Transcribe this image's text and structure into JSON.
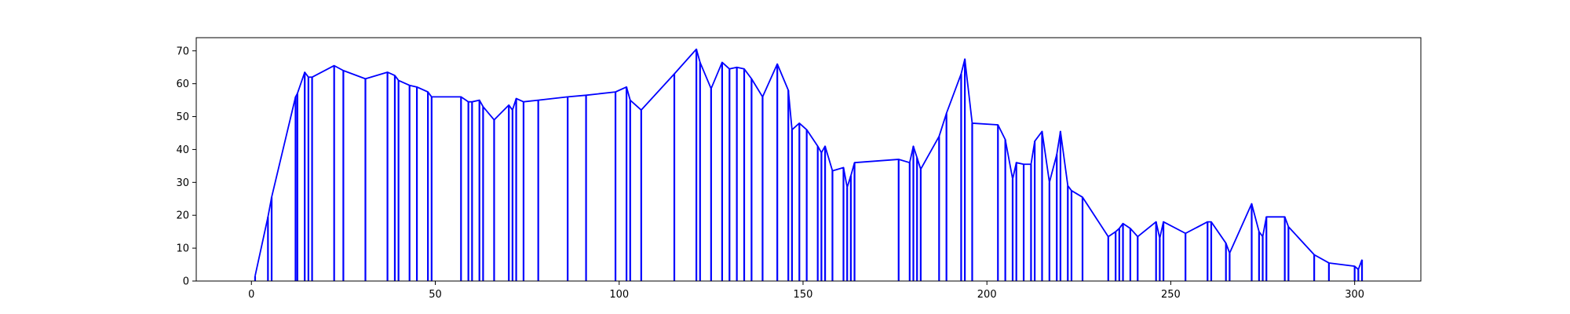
{
  "chart_data": {
    "type": "line",
    "title": "",
    "xlabel": "",
    "ylabel": "",
    "xlim": [
      -15,
      318
    ],
    "ylim": [
      0,
      74
    ],
    "xticks": [
      0,
      50,
      100,
      150,
      200,
      250,
      300
    ],
    "yticks": [
      0,
      10,
      20,
      30,
      40,
      50,
      60,
      70
    ],
    "xtick_labels": [
      "0",
      "50",
      "100",
      "150",
      "200",
      "250",
      "300"
    ],
    "ytick_labels": [
      "0",
      "10",
      "20",
      "30",
      "40",
      "50",
      "60",
      "70"
    ],
    "grid": false,
    "legend": false,
    "style": "line with vertical drop lines to zero at each point",
    "colors": {
      "series": "#0000ff",
      "axes": "#000000",
      "background": "#ffffff"
    },
    "series": [
      {
        "x": [
          1,
          4.5,
          5.5,
          12,
          12.5,
          14.5,
          15.5,
          16.5,
          22.5,
          25,
          31,
          37,
          39,
          40,
          43,
          45,
          48,
          49,
          57,
          59,
          60,
          62,
          63,
          66,
          70,
          71,
          72,
          74,
          78,
          86,
          91,
          99,
          102,
          103,
          106,
          115,
          121,
          122,
          125,
          128,
          130,
          132,
          134,
          136,
          139,
          143,
          146,
          147,
          149,
          151,
          154,
          155,
          156,
          158,
          161,
          162,
          163,
          164,
          176,
          179,
          180,
          181,
          182,
          187,
          189,
          193,
          194,
          196,
          203,
          205,
          207,
          208,
          210,
          212,
          213,
          215,
          217,
          219,
          220,
          222,
          223,
          226,
          233,
          235,
          236,
          237,
          239,
          241,
          246,
          247,
          248,
          254,
          260,
          261,
          265,
          266,
          272,
          274,
          275,
          276,
          281,
          282,
          289,
          293,
          300,
          301,
          302
        ],
        "y": [
          1.5,
          19.5,
          25.5,
          56,
          57,
          63.5,
          62,
          62,
          65.5,
          64,
          61.5,
          63.5,
          62.5,
          61,
          59.5,
          59,
          57.5,
          56,
          56,
          54.5,
          54.5,
          55,
          53,
          49,
          53.5,
          52,
          55.5,
          54.5,
          55,
          56,
          56.5,
          57.5,
          59,
          55,
          52,
          63,
          70.5,
          66.5,
          58.5,
          66.5,
          64.5,
          65,
          64.5,
          61.5,
          56,
          66,
          58,
          46,
          48,
          46,
          41,
          39,
          41,
          33.5,
          34.5,
          28.5,
          32,
          36,
          37,
          36,
          41,
          37.5,
          34,
          44,
          51,
          63,
          67.5,
          48,
          47.5,
          43,
          31,
          36,
          35.5,
          35.5,
          42.5,
          45.5,
          30,
          38.5,
          45.5,
          29,
          27.5,
          25.5,
          13.5,
          15,
          16,
          17.5,
          16,
          13.5,
          18,
          13,
          18,
          14.5,
          18,
          18,
          11.5,
          8.5,
          23.5,
          15,
          13.5,
          19.5,
          19.5,
          16.5,
          8,
          5.5,
          4.5,
          3.5,
          6.5
        ]
      }
    ]
  }
}
